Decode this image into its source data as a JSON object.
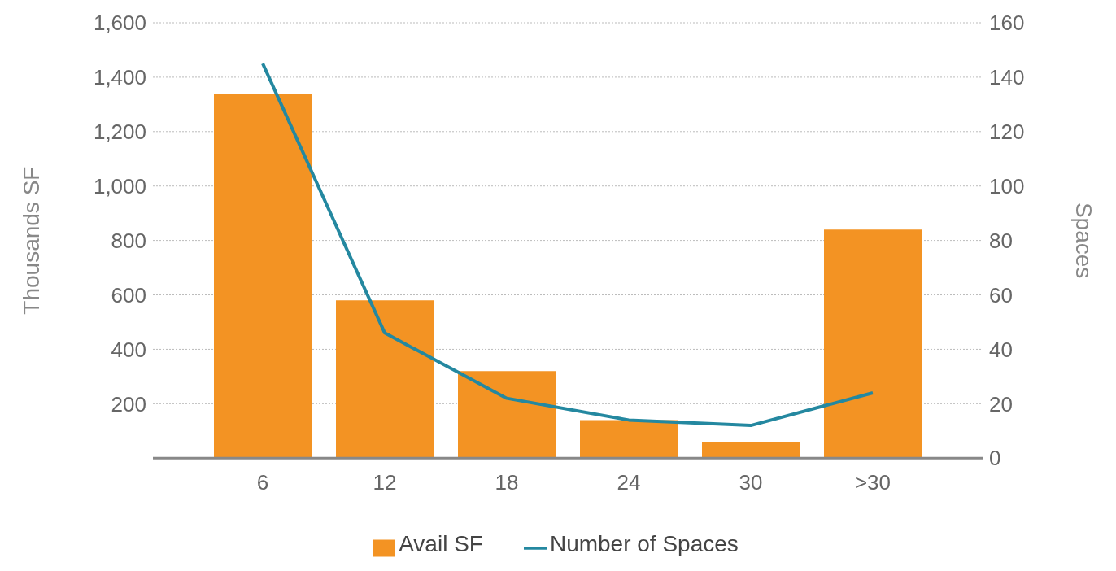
{
  "chart_data": {
    "type": "bar",
    "ylabel": "Thousands SF",
    "y2label": "Spaces",
    "categories": [
      "6",
      "12",
      "18",
      "24",
      "30",
      ">30"
    ],
    "series": [
      {
        "name": "Avail SF",
        "color": "#f39323",
        "values": [
          1340,
          580,
          320,
          140,
          60,
          840
        ]
      },
      {
        "name": "Number of Spaces",
        "type": "line",
        "axis": "y2",
        "color": "#2488a0",
        "values": [
          145,
          46,
          22,
          14,
          12,
          24
        ]
      }
    ],
    "ylim": [
      0,
      1600
    ],
    "yticks": [
      {
        "value": 0,
        "label": null
      },
      200,
      400,
      600,
      800,
      {
        "value": 1000,
        "label": "1,000"
      },
      {
        "value": 1200,
        "label": "1,200"
      },
      {
        "value": 1400,
        "label": "1,400"
      },
      {
        "value": 1600,
        "label": "1,600"
      }
    ],
    "y2lim": [
      0,
      160
    ],
    "y2ticks": [
      0,
      20,
      40,
      60,
      80,
      100,
      120,
      140,
      160
    ],
    "grid": "y",
    "legend": "bottom",
    "marker": "none"
  }
}
